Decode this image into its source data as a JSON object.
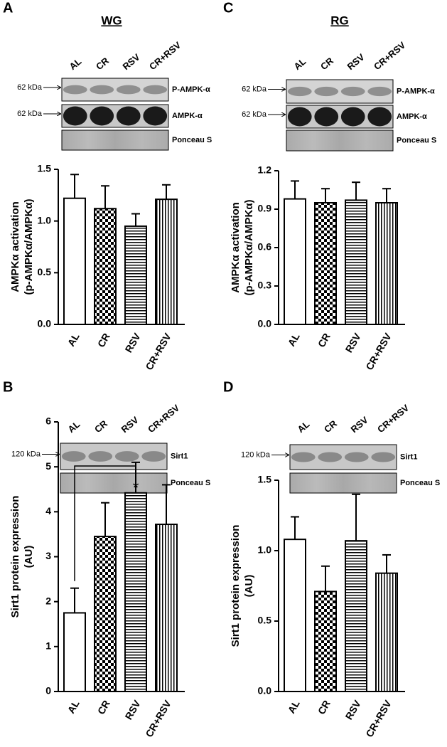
{
  "chart_data": [
    {
      "type": "bar",
      "panel": "A",
      "title": "WG",
      "ylabel": [
        "AMPKα activation",
        "(p-AMPKα/AMPKα)"
      ],
      "categories": [
        "AL",
        "CR",
        "RSV",
        "CR+RSV"
      ],
      "values": [
        1.22,
        1.12,
        0.95,
        1.21
      ],
      "errors": [
        0.23,
        0.22,
        0.12,
        0.14
      ],
      "patterns": [
        "open",
        "checker",
        "horizontal",
        "vertical"
      ],
      "color": "#000000",
      "ylim": [
        0,
        1.5
      ],
      "yticks": [
        {
          "value": 0,
          "label": "0.0"
        },
        0.5,
        {
          "value": 1,
          "label": "1.0"
        },
        1.5
      ],
      "blot": [
        {
          "marker": "62 kDa",
          "label": "P-AMPK-α"
        },
        {
          "marker": "62 kDa",
          "label": "AMPK-α"
        },
        {
          "label": "Ponceau S"
        }
      ]
    },
    {
      "type": "bar",
      "panel": "C",
      "title": "RG",
      "ylabel": [
        "AMPKα activation",
        "(p-AMPKα/AMPKα)"
      ],
      "categories": [
        "AL",
        "CR",
        "RSV",
        "CR+RSV"
      ],
      "values": [
        0.98,
        0.95,
        0.97,
        0.95
      ],
      "errors": [
        0.14,
        0.11,
        0.14,
        0.11
      ],
      "patterns": [
        "open",
        "checker",
        "horizontal",
        "vertical"
      ],
      "color": "#000000",
      "ylim": [
        0,
        1.2
      ],
      "yticks": [
        {
          "value": 0,
          "label": "0.0"
        },
        0.3,
        0.6,
        0.9,
        1.2
      ],
      "blot": [
        {
          "marker": "62 kDa",
          "label": "P-AMPK-α"
        },
        {
          "marker": "62 kDa",
          "label": "AMPK-α"
        },
        {
          "label": "Ponceau S"
        }
      ]
    },
    {
      "type": "bar",
      "panel": "B",
      "ylabel": [
        "Sirt1 protein expression",
        "(AU)"
      ],
      "categories": [
        "AL",
        "CR",
        "RSV",
        "CR+RSV"
      ],
      "values": [
        1.75,
        3.45,
        4.42,
        3.72
      ],
      "errors": [
        0.55,
        0.75,
        0.68,
        0.88
      ],
      "patterns": [
        "open",
        "checker",
        "horizontal",
        "vertical"
      ],
      "color": "#000000",
      "ylim": [
        0,
        6
      ],
      "yticks": [
        0,
        1,
        2,
        3,
        4,
        5,
        6
      ],
      "blot": [
        {
          "marker": "120 kDa",
          "label": "Sirt1"
        },
        {
          "label": "Ponceau S"
        }
      ],
      "annotations": [
        {
          "text": "*",
          "between": [
            "AL",
            "RSV"
          ]
        }
      ]
    },
    {
      "type": "bar",
      "panel": "D",
      "ylabel": [
        "Sirt1 protein expression",
        "(AU)"
      ],
      "categories": [
        "AL",
        "CR",
        "RSV",
        "CR+RSV"
      ],
      "values": [
        1.08,
        0.71,
        1.07,
        0.84
      ],
      "errors": [
        0.16,
        0.18,
        0.33,
        0.13
      ],
      "patterns": [
        "open",
        "checker",
        "horizontal",
        "vertical"
      ],
      "color": "#000000",
      "ylim": [
        0,
        1.5
      ],
      "yticks": [
        {
          "value": 0,
          "label": "0.0"
        },
        0.5,
        {
          "value": 1,
          "label": "1.0"
        },
        1.5
      ],
      "blot": [
        {
          "marker": "120 kDa",
          "label": "Sirt1"
        },
        {
          "label": "Ponceau S"
        }
      ]
    }
  ]
}
